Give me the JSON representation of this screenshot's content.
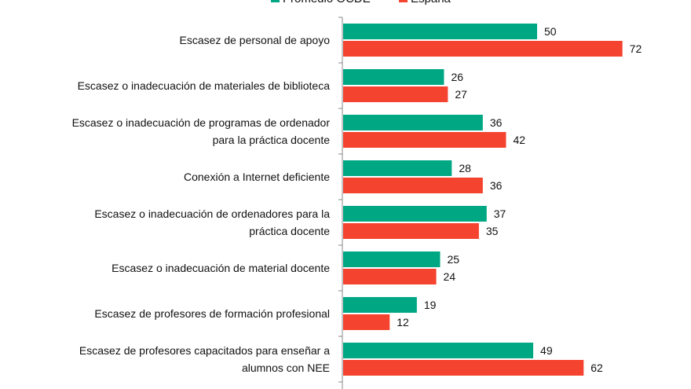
{
  "chart_data": {
    "type": "bar",
    "orientation": "horizontal",
    "categories": [
      [
        "Escasez de personal de apoyo"
      ],
      [
        "Escasez o inadecuación de materiales de biblioteca"
      ],
      [
        "Escasez o inadecuación de programas de ordenador",
        "para la práctica docente"
      ],
      [
        "Conexión a Internet deficiente"
      ],
      [
        "Escasez o inadecuación de ordenadores para la",
        "práctica docente"
      ],
      [
        "Escasez o inadecuación de material docente"
      ],
      [
        "Escasez de profesores de formación profesional"
      ],
      [
        "Escasez de profesores capacitados para enseñar a",
        "alumnos con NEE"
      ]
    ],
    "series": [
      {
        "name": "Promedio OCDE",
        "color": "#00a783",
        "values": [
          50,
          26,
          36,
          28,
          37,
          25,
          19,
          49
        ]
      },
      {
        "name": "España",
        "color": "#f4432e",
        "values": [
          72,
          27,
          42,
          36,
          35,
          24,
          12,
          62
        ]
      }
    ],
    "legend": "top",
    "grid": false,
    "data_labels": true
  }
}
